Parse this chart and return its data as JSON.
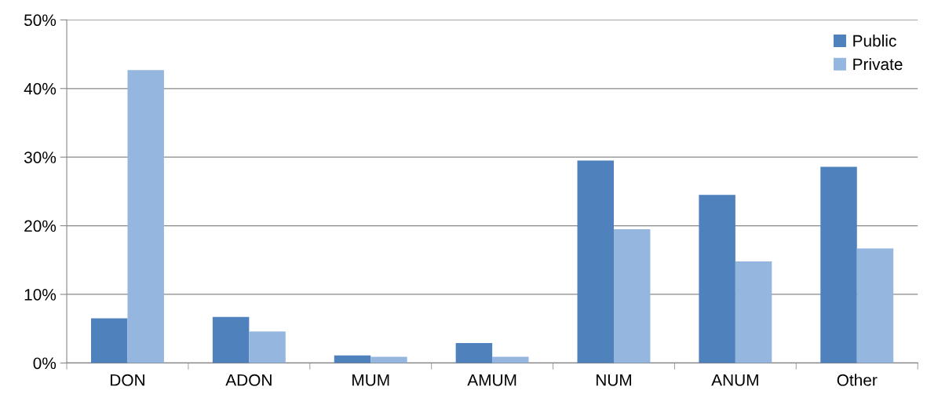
{
  "chart_data": {
    "type": "bar",
    "categories": [
      "DON",
      "ADON",
      "MUM",
      "AMUM",
      "NUM",
      "ANUM",
      "Other"
    ],
    "series": [
      {
        "name": "Public",
        "color": "#4f81bd",
        "values": [
          6.5,
          6.7,
          1.1,
          2.9,
          29.5,
          24.5,
          28.6
        ]
      },
      {
        "name": "Private",
        "color": "#95b7df",
        "values": [
          42.7,
          4.6,
          0.9,
          0.9,
          19.5,
          14.8,
          16.7
        ]
      }
    ],
    "ylim": [
      0,
      50
    ],
    "yticks": [
      {
        "value": 0,
        "label": "0%"
      },
      {
        "value": 10,
        "label": "10%"
      },
      {
        "value": 20,
        "label": "20%"
      },
      {
        "value": 30,
        "label": "30%"
      },
      {
        "value": 40,
        "label": "40%"
      },
      {
        "value": 50,
        "label": "50%"
      }
    ],
    "grid": "y",
    "legend": "top right"
  }
}
